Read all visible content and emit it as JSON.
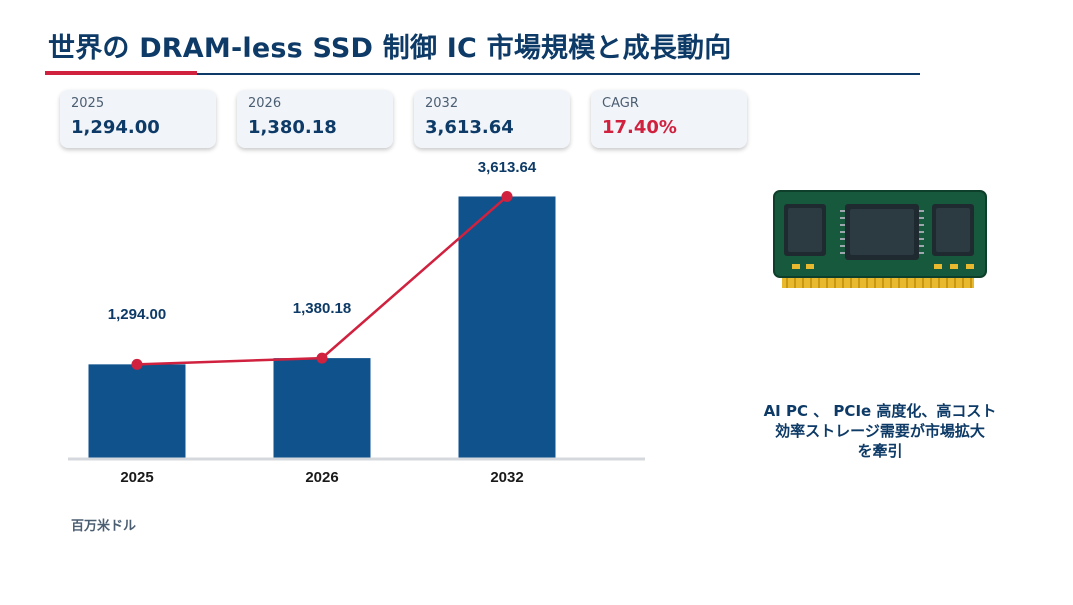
{
  "title": "世界の DRAM-less SSD 制御 IC 市場規模と成長動向",
  "kpis": [
    {
      "label": "2025",
      "value": "1,294.00"
    },
    {
      "label": "2026",
      "value": "1,380.18"
    },
    {
      "label": "2032",
      "value": "3,613.64"
    },
    {
      "label": "CAGR",
      "value": "17.40%"
    }
  ],
  "colors": {
    "bar": "#0f528c",
    "line": "#d0213f",
    "title": "#0d3a66",
    "accent": "#d0213f"
  },
  "chart_data": {
    "type": "bar",
    "categories": [
      "2025",
      "2026",
      "2032"
    ],
    "series": [
      {
        "values": [
          1294.0,
          1380.18,
          3613.64
        ]
      }
    ],
    "line_overlay": [
      1294.0,
      1380.18,
      3613.64
    ],
    "data_labels": [
      "1,294.00",
      "1,380.18",
      "3,613.64"
    ],
    "ylim": [
      0,
      3800
    ],
    "grid": false,
    "unit": "百万米ドル"
  },
  "driver_text": [
    "AI PC 、 PCIe 高度化、高コスト",
    "効率ストレージ需要が市場拡大",
    "を牽引"
  ],
  "icon": "ssd-chip-icon"
}
